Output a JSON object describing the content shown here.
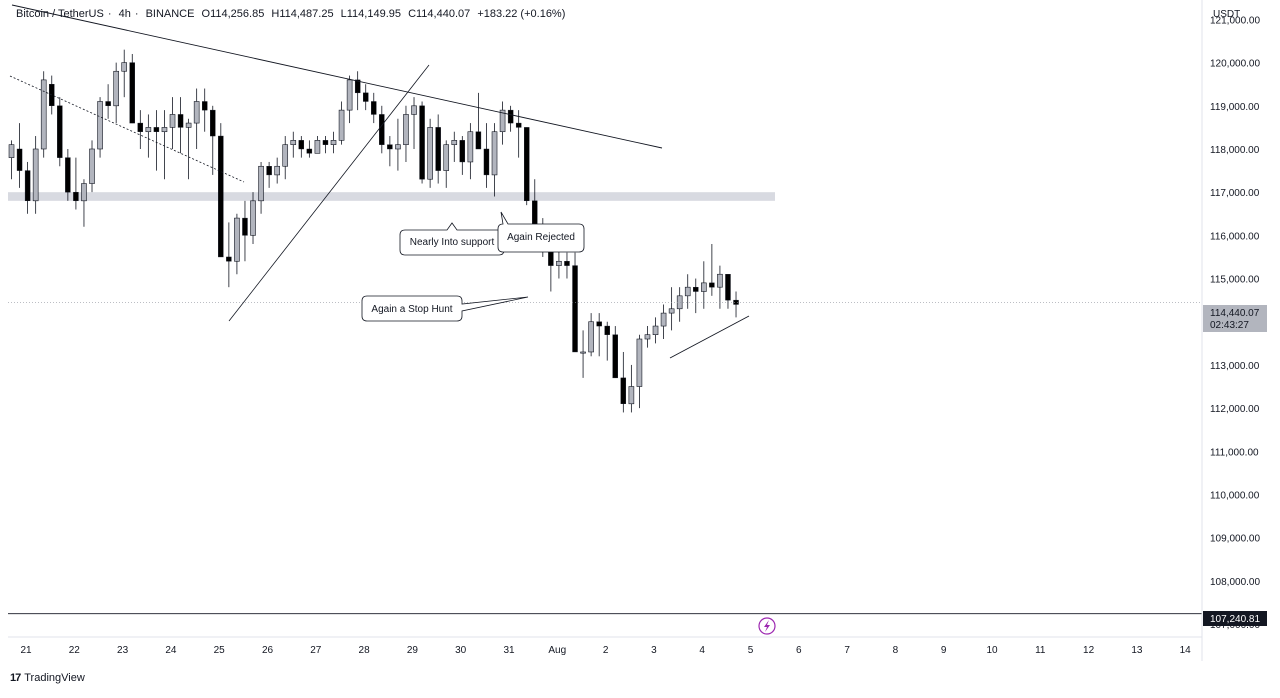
{
  "header": {
    "symbol": "Bitcoin / TetherUS",
    "interval": "4h",
    "exchange": "BINANCE",
    "open": "O114,256.85",
    "high": "H114,487.25",
    "low": "L114,149.95",
    "close": "C114,440.07",
    "change": "+183.22 (+0.16%)"
  },
  "price_axis_currency": "USDT",
  "current_price_label": "114,440.07",
  "countdown_label": "02:43:27",
  "lower_line_label": "107,240.81",
  "brand": "TradingView",
  "chart_data": {
    "type": "candlestick",
    "y_ticks": [
      "121,000.00",
      "120,000.00",
      "119,000.00",
      "118,000.00",
      "117,000.00",
      "116,000.00",
      "115,000.00",
      "114,000.00",
      "113,000.00",
      "112,000.00",
      "111,000.00",
      "110,000.00",
      "109,000.00",
      "108,000.00",
      "107,000.00"
    ],
    "ylim": [
      106700,
      121450
    ],
    "x_ticks": [
      {
        "label": "21",
        "day": 21
      },
      {
        "label": "22",
        "day": 22
      },
      {
        "label": "23",
        "day": 23
      },
      {
        "label": "24",
        "day": 24
      },
      {
        "label": "25",
        "day": 25
      },
      {
        "label": "26",
        "day": 26
      },
      {
        "label": "27",
        "day": 27
      },
      {
        "label": "28",
        "day": 28
      },
      {
        "label": "29",
        "day": 29
      },
      {
        "label": "30",
        "day": 30
      },
      {
        "label": "31",
        "day": 31
      },
      {
        "label": "Aug",
        "day": 32
      },
      {
        "label": "2",
        "day": 33
      },
      {
        "label": "3",
        "day": 34
      },
      {
        "label": "4",
        "day": 35
      },
      {
        "label": "5",
        "day": 36
      },
      {
        "label": "6",
        "day": 37
      },
      {
        "label": "7",
        "day": 38
      },
      {
        "label": "8",
        "day": 39
      },
      {
        "label": "9",
        "day": 40
      },
      {
        "label": "10",
        "day": 41
      },
      {
        "label": "11",
        "day": 42
      },
      {
        "label": "12",
        "day": 43
      },
      {
        "label": "13",
        "day": 44
      },
      {
        "label": "14",
        "day": 45
      }
    ],
    "x_first_day": 20.7,
    "candle_step_days": 0.16667,
    "ohlc": [
      [
        117800,
        118200,
        117300,
        118100
      ],
      [
        118000,
        118600,
        117100,
        117500
      ],
      [
        117500,
        117700,
        116500,
        116800
      ],
      [
        116800,
        118300,
        116500,
        118000
      ],
      [
        118000,
        119800,
        117800,
        119600
      ],
      [
        119500,
        119700,
        118800,
        119000
      ],
      [
        119000,
        119200,
        117600,
        117800
      ],
      [
        117800,
        118000,
        116800,
        117000
      ],
      [
        117000,
        117800,
        116600,
        116800
      ],
      [
        116800,
        117300,
        116200,
        117200
      ],
      [
        117200,
        118200,
        117000,
        118000
      ],
      [
        118000,
        119200,
        117800,
        119100
      ],
      [
        119100,
        119500,
        118700,
        119000
      ],
      [
        119000,
        120000,
        118600,
        119800
      ],
      [
        119800,
        120300,
        119200,
        120000
      ],
      [
        120000,
        120200,
        118600,
        118600
      ],
      [
        118600,
        118900,
        118000,
        118400
      ],
      [
        118400,
        118800,
        117800,
        118500
      ],
      [
        118500,
        118900,
        117500,
        118400
      ],
      [
        118400,
        118900,
        117300,
        118500
      ],
      [
        118500,
        119200,
        118000,
        118800
      ],
      [
        118800,
        119200,
        117900,
        118500
      ],
      [
        118500,
        118700,
        117300,
        118600
      ],
      [
        118600,
        119400,
        118000,
        119100
      ],
      [
        119100,
        119400,
        118400,
        118900
      ],
      [
        118900,
        119000,
        117400,
        118300
      ],
      [
        118300,
        118600,
        115500,
        115500
      ],
      [
        115500,
        116300,
        114800,
        115400
      ],
      [
        115400,
        116500,
        115100,
        116400
      ],
      [
        116400,
        116800,
        115400,
        116000
      ],
      [
        116000,
        117000,
        115800,
        116800
      ],
      [
        116800,
        117700,
        116500,
        117600
      ],
      [
        117600,
        117700,
        117100,
        117400
      ],
      [
        117400,
        117800,
        117200,
        117600
      ],
      [
        117600,
        118300,
        117300,
        118100
      ],
      [
        118100,
        118400,
        117800,
        118200
      ],
      [
        118200,
        118300,
        117800,
        118000
      ],
      [
        118000,
        118200,
        117800,
        117900
      ],
      [
        117900,
        118300,
        117900,
        118200
      ],
      [
        118200,
        118300,
        117900,
        118100
      ],
      [
        118100,
        118400,
        117900,
        118200
      ],
      [
        118200,
        119100,
        118100,
        118900
      ],
      [
        118900,
        119700,
        118600,
        119600
      ],
      [
        119600,
        119800,
        118900,
        119300
      ],
      [
        119300,
        119500,
        118900,
        119100
      ],
      [
        119100,
        119300,
        118600,
        118800
      ],
      [
        118800,
        119000,
        117900,
        118100
      ],
      [
        118100,
        118300,
        117600,
        118000
      ],
      [
        118000,
        118700,
        117500,
        118100
      ],
      [
        118100,
        119000,
        117700,
        118800
      ],
      [
        118800,
        119200,
        118000,
        119000
      ],
      [
        119000,
        119100,
        117200,
        117300
      ],
      [
        117300,
        118700,
        117100,
        118500
      ],
      [
        118500,
        118800,
        117200,
        117500
      ],
      [
        117500,
        118200,
        117100,
        118100
      ],
      [
        118100,
        118400,
        117700,
        118200
      ],
      [
        118200,
        118300,
        117400,
        117700
      ],
      [
        117700,
        118600,
        117300,
        118400
      ],
      [
        118400,
        119300,
        118000,
        118000
      ],
      [
        118000,
        118600,
        117100,
        117400
      ],
      [
        117400,
        118600,
        116900,
        118400
      ],
      [
        118400,
        119100,
        118100,
        118900
      ],
      [
        118900,
        119000,
        118400,
        118600
      ],
      [
        118600,
        118900,
        117800,
        118500
      ],
      [
        118500,
        118500,
        116700,
        116800
      ],
      [
        116800,
        117300,
        115900,
        116000
      ],
      [
        116000,
        116400,
        115500,
        115800
      ],
      [
        115800,
        116100,
        114700,
        115300
      ],
      [
        115300,
        115800,
        115000,
        115400
      ],
      [
        115400,
        115600,
        115000,
        115300
      ],
      [
        115300,
        115600,
        113300,
        113300
      ],
      [
        113300,
        113800,
        112700,
        113300
      ],
      [
        113300,
        114200,
        113200,
        114000
      ],
      [
        114000,
        114200,
        113200,
        113900
      ],
      [
        113900,
        114000,
        113100,
        113700
      ],
      [
        113700,
        113900,
        112700,
        112700
      ],
      [
        112700,
        113300,
        111900,
        112100
      ],
      [
        112100,
        113000,
        111900,
        112500
      ],
      [
        112500,
        113700,
        112000,
        113600
      ],
      [
        113600,
        113900,
        113400,
        113700
      ],
      [
        113700,
        114100,
        113500,
        113900
      ],
      [
        113900,
        114400,
        113600,
        114200
      ],
      [
        114200,
        114800,
        113800,
        114300
      ],
      [
        114300,
        114800,
        114000,
        114600
      ],
      [
        114600,
        115100,
        114300,
        114800
      ],
      [
        114800,
        115000,
        114200,
        114700
      ],
      [
        114700,
        115400,
        114300,
        114900
      ],
      [
        114900,
        115800,
        114600,
        114800
      ],
      [
        114800,
        115300,
        114300,
        115100
      ],
      [
        115100,
        115100,
        114300,
        114500
      ],
      [
        114500,
        114700,
        114100,
        114400
      ]
    ],
    "support_zone": [
      116800,
      117000
    ],
    "current_price": 114440.07,
    "lower_line": 107240.81,
    "annotations": [
      "Nearly Into support",
      "Again Rejected",
      "Again a Stop Hunt"
    ]
  }
}
